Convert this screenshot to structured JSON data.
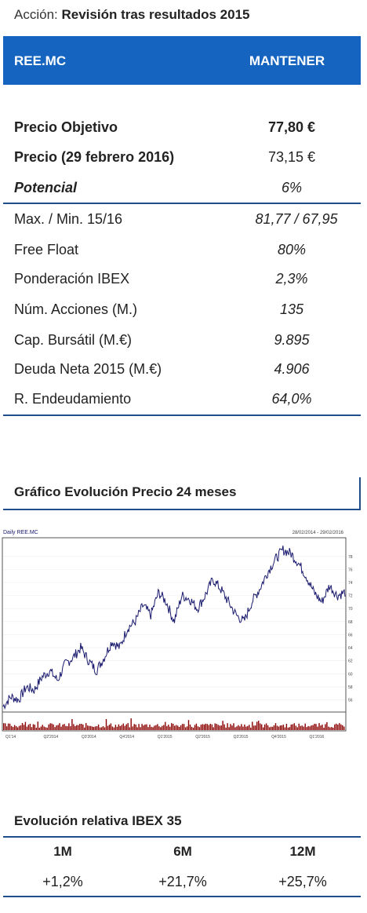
{
  "title": {
    "prefix": "Acción:",
    "text": "Revisión tras resultados 2015"
  },
  "header": {
    "ticker": "REE.MC",
    "rating": "MANTENER"
  },
  "key_metrics": [
    {
      "label": "Precio Objetivo",
      "value": "77,80 €"
    },
    {
      "label": "Precio (29 febrero 2016)",
      "value": "73,15 €"
    },
    {
      "label": "Potencial",
      "value": "6%"
    }
  ],
  "stats": [
    {
      "label": "Max. / Min. 15/16",
      "value": "81,77 / 67,95"
    },
    {
      "label": "Free Float",
      "value": "80%"
    },
    {
      "label": "Ponderación IBEX",
      "value": "2,3%"
    },
    {
      "label": "Núm. Acciones (M.)",
      "value": "135"
    },
    {
      "label": "Cap. Bursátil (M.€)",
      "value": "9.895"
    },
    {
      "label": "Deuda Neta 2015 (M.€)",
      "value": "4.906"
    },
    {
      "label": "R. Endeudamiento",
      "value": "64,0%"
    }
  ],
  "chart_section": {
    "title": "Gráfico Evolución Precio 24 meses"
  },
  "chart_data": {
    "type": "line",
    "series_label": "Daily REE.MC",
    "date_range": "28/02/2014 - 29/02/2016",
    "x_ticks": [
      "Q1'14",
      "Q2'2014",
      "Q3'2014",
      "Q4'2014",
      "Q1'2015",
      "Q2'2015",
      "Q3'2015",
      "Q4'2015",
      "Q1'2016"
    ],
    "y_ticks": [
      56,
      58,
      60,
      62,
      64,
      66,
      68,
      70,
      72,
      74,
      76,
      78
    ],
    "ylim": [
      54.5,
      80.5
    ],
    "price": [
      55.0,
      56.5,
      56.0,
      58.0,
      57.5,
      59.5,
      60.5,
      59.0,
      61.5,
      62.5,
      64.0,
      62.0,
      60.5,
      62.5,
      65.0,
      64.0,
      67.0,
      68.0,
      70.5,
      69.0,
      72.5,
      71.0,
      68.0,
      72.0,
      71.5,
      70.0,
      72.0,
      74.5,
      73.0,
      71.0,
      69.0,
      68.0,
      71.0,
      73.0,
      75.5,
      77.5,
      79.0,
      78.5,
      77.0,
      75.0,
      72.5,
      71.0,
      73.5,
      72.0,
      72.5
    ],
    "volume_color": "#8b0000"
  },
  "performance": {
    "title": "Evolución relativa IBEX 35",
    "headers": [
      "1M",
      "6M",
      "12M"
    ],
    "values": [
      "+1,2%",
      "+21,7%",
      "+25,7%"
    ]
  },
  "colors": {
    "header_bg": "#1565c0",
    "rule": "#1f4e8c",
    "line": "#1a1a6e"
  }
}
